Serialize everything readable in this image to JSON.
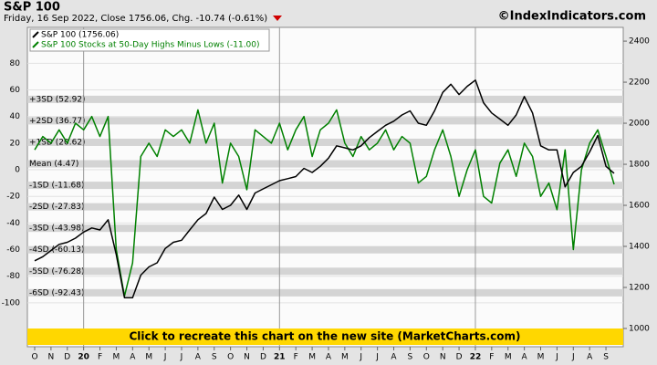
{
  "chart_data": {
    "type": "line",
    "title": "S&P 100",
    "subtitle": "Friday, 16 Sep 2022, Close 1756.06, Chg. -10.74 (-0.61%)",
    "source": "©IndexIndicators.com",
    "banner": "Click to recreate this chart on the new site (MarketCharts.com)",
    "categories": [
      "O",
      null,
      "N",
      null,
      "D",
      null,
      "20",
      null,
      "F",
      null,
      "M",
      null,
      "A",
      null,
      "M",
      null,
      "J",
      null,
      "J",
      null,
      "A",
      null,
      "S",
      null,
      "O",
      null,
      "N",
      null,
      "D",
      null,
      "21",
      null,
      "F",
      null,
      "M",
      null,
      "A",
      null,
      "M",
      null,
      "J",
      null,
      "J",
      null,
      "A",
      null,
      "S",
      null,
      "O",
      null,
      "N",
      null,
      "D",
      null,
      "22",
      null,
      "F",
      null,
      "M",
      null,
      "A",
      null,
      "M",
      null,
      "J",
      null,
      "J",
      null,
      "A",
      null,
      "S",
      null
    ],
    "series": [
      {
        "name": "S&P 100 (1756.06)",
        "color": "#000000",
        "axis": "y2",
        "values": [
          1330,
          1350,
          1380,
          1410,
          1420,
          1440,
          1470,
          1490,
          1480,
          1530,
          1360,
          1150,
          1150,
          1260,
          1300,
          1320,
          1390,
          1420,
          1430,
          1480,
          1530,
          1560,
          1640,
          1580,
          1600,
          1650,
          1580,
          1660,
          1680,
          1700,
          1720,
          1730,
          1740,
          1780,
          1760,
          1790,
          1830,
          1890,
          1880,
          1870,
          1890,
          1930,
          1960,
          1990,
          2010,
          2040,
          2060,
          2000,
          1990,
          2060,
          2150,
          2190,
          2140,
          2180,
          2210,
          2100,
          2050,
          2020,
          1990,
          2040,
          2130,
          2050,
          1890,
          1870,
          1870,
          1690,
          1760,
          1790,
          1860,
          1940,
          1790,
          1756.06
        ]
      },
      {
        "name": "S&P 100 Stocks at 50-Day Highs Minus Lows (-11.00)",
        "color": "#008000",
        "values": [
          15,
          25,
          20,
          30,
          20,
          35,
          30,
          40,
          25,
          40,
          -60,
          -95,
          -70,
          10,
          20,
          10,
          30,
          25,
          30,
          20,
          45,
          20,
          35,
          -10,
          20,
          10,
          -15,
          30,
          25,
          20,
          35,
          15,
          30,
          40,
          10,
          30,
          35,
          45,
          20,
          10,
          25,
          15,
          20,
          30,
          15,
          25,
          20,
          -10,
          -5,
          15,
          30,
          10,
          -20,
          0,
          15,
          -20,
          -25,
          5,
          15,
          -5,
          20,
          10,
          -20,
          -10,
          -30,
          15,
          -60,
          0,
          20,
          30,
          10,
          -11
        ]
      }
    ],
    "reference_lines": [
      {
        "value": 52.92,
        "label": "+3SD (52.92)"
      },
      {
        "value": 36.77,
        "label": "+2SD (36.77)"
      },
      {
        "value": 20.62,
        "label": "+1SD (20.62)"
      },
      {
        "value": 4.47,
        "label": "Mean (4.47)"
      },
      {
        "value": -11.68,
        "label": "-1SD (-11.68)"
      },
      {
        "value": -27.83,
        "label": "-2SD (-27.83)"
      },
      {
        "value": -43.98,
        "label": "-3SD (-43.98)"
      },
      {
        "value": -60.13,
        "label": "-4SD (-60.13)"
      },
      {
        "value": -76.28,
        "label": "-5SD (-76.28)"
      },
      {
        "value": -92.43,
        "label": "-6SD (-92.43)"
      }
    ],
    "ylim": [
      -133,
      107
    ],
    "yticks": [
      80,
      60,
      40,
      20,
      0,
      -20,
      -40,
      -60,
      -80,
      -100
    ],
    "y2lim": [
      911,
      2467
    ],
    "y2ticks": [
      1000,
      1200,
      1400,
      1600,
      1800,
      2000,
      2200,
      2400
    ],
    "grid": true,
    "legend": "top-left"
  }
}
